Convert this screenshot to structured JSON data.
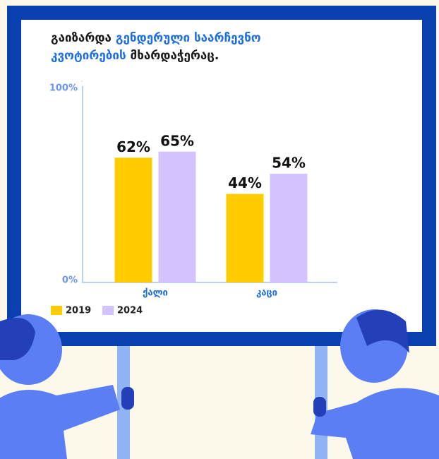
{
  "chart_data": {
    "type": "bar",
    "title_parts": [
      "გაიზარდა",
      "გენდერული საარჩევნო კვოტირების",
      "მხარდაჭერაც."
    ],
    "categories": [
      "ქალი",
      "კაცი"
    ],
    "series": [
      {
        "name": "2019",
        "color": "#ffcc00",
        "values": [
          62,
          44
        ],
        "value_labels": [
          "62%",
          "44%"
        ]
      },
      {
        "name": "2024",
        "color": "#d4c2ff",
        "values": [
          65,
          54
        ],
        "value_labels": [
          "65%",
          "54%"
        ]
      }
    ],
    "ylim": [
      0,
      100
    ],
    "yticks": [
      {
        "value": 0,
        "label": "0%"
      },
      {
        "value": 100,
        "label": "100%"
      }
    ],
    "grid": false
  }
}
